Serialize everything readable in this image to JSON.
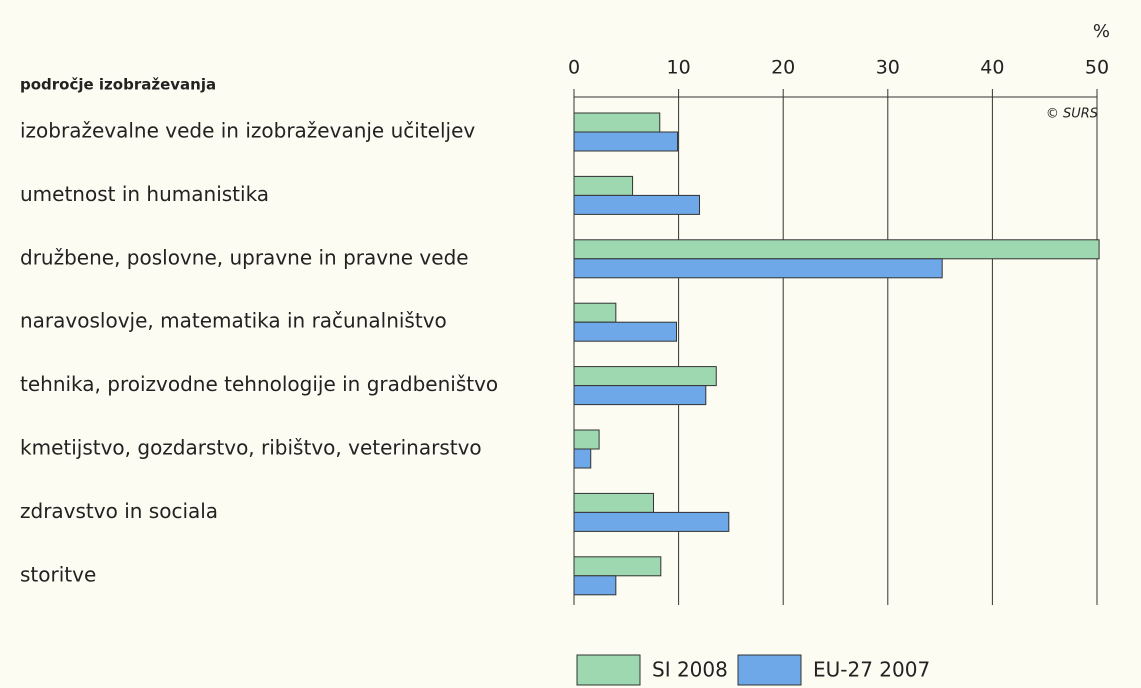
{
  "chart_data": {
    "type": "bar",
    "orientation": "horizontal",
    "title": "področje izobraževanja",
    "x_unit_label": "%",
    "source": "© SURS",
    "categories": [
      "izobraževalne vede in izobraževanje učiteljev",
      "umetnost in humanistika",
      "družbene, poslovne, upravne in pravne vede",
      "naravoslovje, matematika in računalništvo",
      "tehnika, proizvodne tehnologije in gradbeništvo",
      "kmetijstvo, gozdarstvo, ribištvo, veterinarstvo",
      "zdravstvo in sociala",
      "storitve"
    ],
    "series": [
      {
        "name": "SI 2008",
        "color": "#9ed8b0",
        "values": [
          8.2,
          5.6,
          50.2,
          4.0,
          13.6,
          2.4,
          7.6,
          8.3
        ]
      },
      {
        "name": "EU-27 2007",
        "color": "#6ea8e8",
        "values": [
          9.9,
          12.0,
          35.2,
          9.8,
          12.6,
          1.6,
          14.8,
          4.0
        ]
      }
    ],
    "xlim": [
      0,
      50
    ],
    "xticks": [
      0,
      10,
      20,
      30,
      40,
      50
    ],
    "grid": true
  }
}
